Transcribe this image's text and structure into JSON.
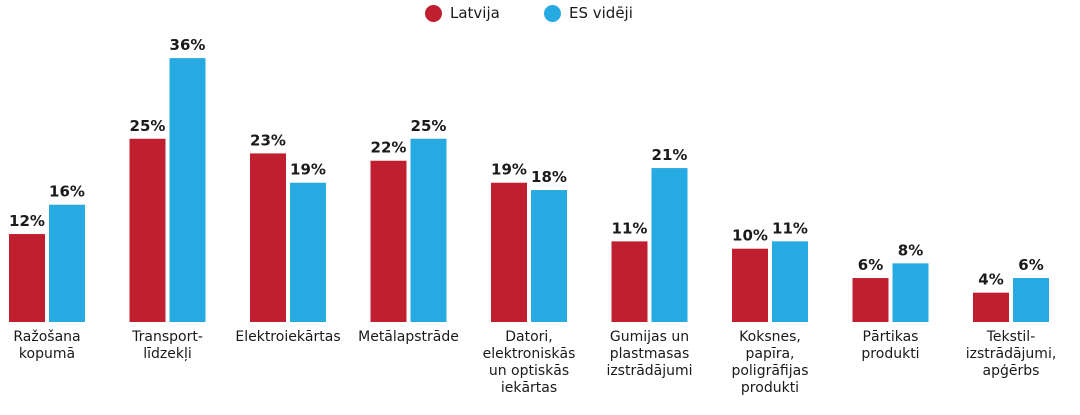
{
  "chart_data": {
    "type": "bar",
    "categories": [
      "Ražošana\nkopumā",
      "Transport-\nlīdzekļi",
      "Elektroiekārtas",
      "Metālapstrāde",
      "Datori,\nelektroniskās\nun optiskās\niekārtas",
      "Gumijas un\nplastmasas\nizstrādājumi",
      "Koksnes,\npapīra,\npoligrāfijas\nprodukti",
      "Pārtikas\nprodukti",
      "Tekstil-\nizstrādājumi,\napģērbs"
    ],
    "series": [
      {
        "name": "Latvija",
        "color": "#c01f30",
        "values": [
          12,
          25,
          23,
          22,
          19,
          11,
          10,
          6,
          4
        ],
        "labels": [
          "12%",
          "25%",
          "23%",
          "22%",
          "19%",
          "11%",
          "10%",
          "6%",
          "4%"
        ]
      },
      {
        "name": "ES vidēji",
        "color": "#27a9e1",
        "values": [
          16,
          36,
          19,
          25,
          18,
          21,
          11,
          8,
          6
        ],
        "labels": [
          "16%",
          "36%",
          "19%",
          "25%",
          "18%",
          "21%",
          "11%",
          "8%",
          "6%"
        ]
      }
    ],
    "ylim": [
      0,
      38
    ],
    "grid": false,
    "legend": "top-center"
  }
}
